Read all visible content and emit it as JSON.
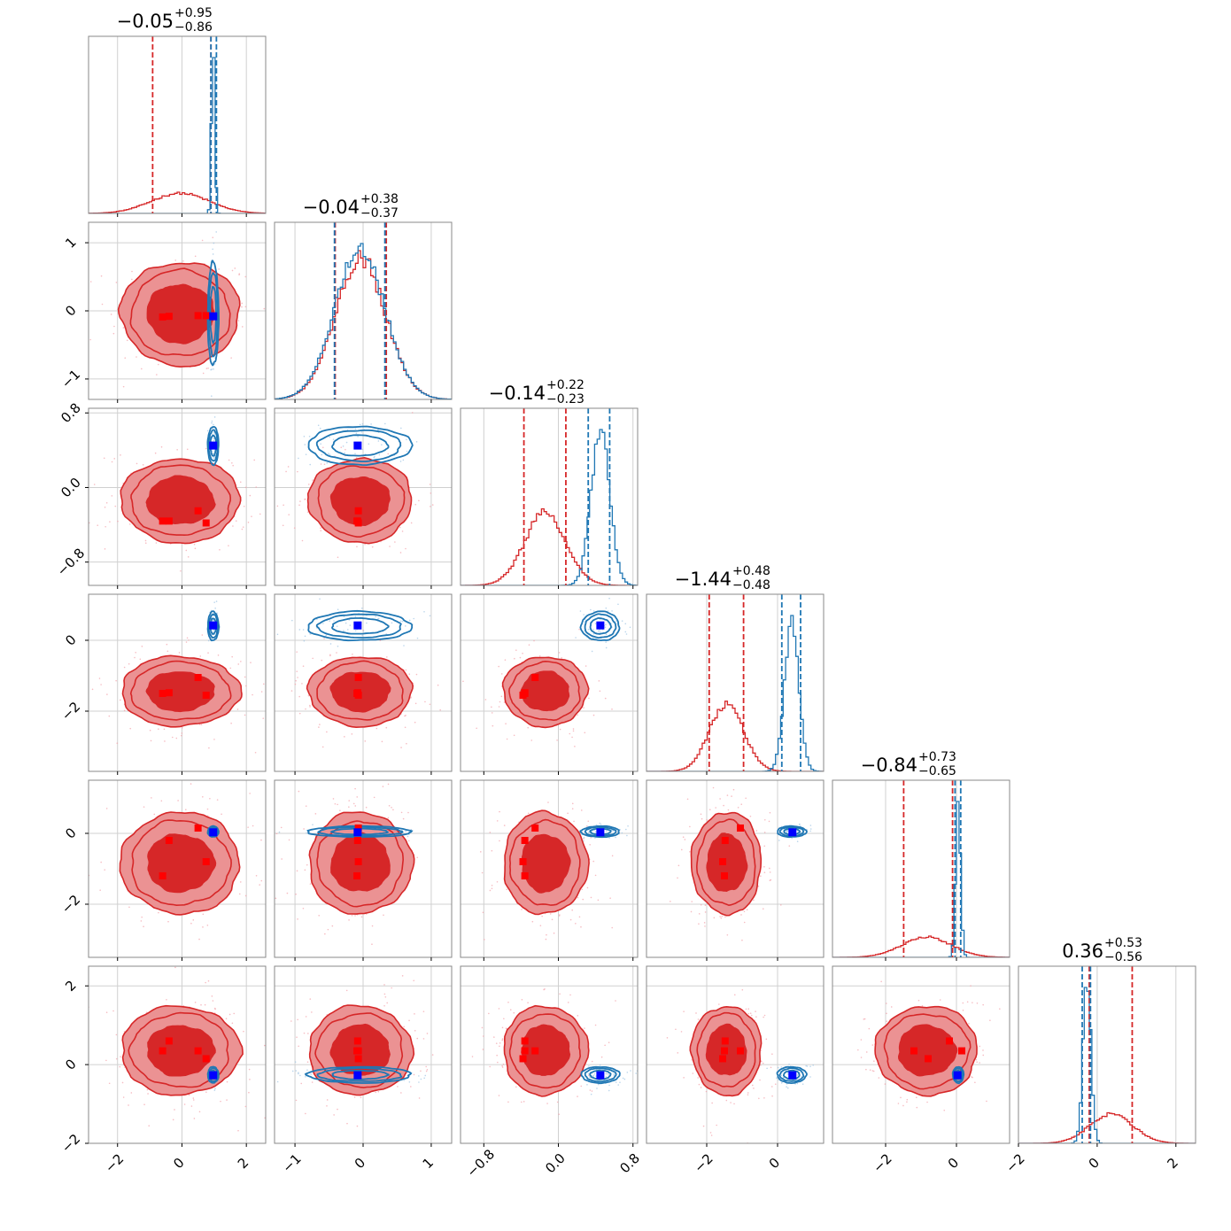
{
  "chart_data": {
    "type": "corner",
    "grid": true,
    "colors": {
      "red": "#d62728",
      "blue": "#1f77b4",
      "red_fill_light": "#eb9293",
      "red_fill_dark": "#d62728",
      "red_marker": "#ff0000",
      "blue_marker": "#0000ff",
      "frame": "#888888",
      "grid": "#d0d0d0"
    },
    "parameters": [
      {
        "range": [
          -2.9,
          2.6
        ],
        "ticks": [
          {
            "v": -2,
            "label": "−2"
          },
          {
            "v": 0,
            "label": "0"
          },
          {
            "v": 2,
            "label": "2"
          }
        ],
        "title": {
          "median": "−0.05",
          "plus": "+0.95",
          "minus": "−0.86"
        },
        "red": {
          "mean": -0.05,
          "sd": 0.9,
          "q": [
            -0.91,
            0.9
          ]
        },
        "blue": {
          "mean": 0.97,
          "sd": 0.05,
          "q": [
            0.9,
            1.07
          ]
        }
      },
      {
        "range": [
          -1.3,
          1.3
        ],
        "ticks": [
          {
            "v": -1,
            "label": "−1"
          },
          {
            "v": 0,
            "label": "0"
          },
          {
            "v": 1,
            "label": "1"
          }
        ],
        "title": {
          "median": "−0.04",
          "plus": "+0.38",
          "minus": "−0.37"
        },
        "red": {
          "mean": -0.04,
          "sd": 0.37,
          "q": [
            -0.41,
            0.34
          ]
        },
        "blue": {
          "mean": -0.05,
          "sd": 0.37,
          "q": [
            -0.42,
            0.32
          ]
        }
      },
      {
        "range": [
          -1.05,
          0.85
        ],
        "ticks": [
          {
            "v": -0.8,
            "label": "−0.8"
          },
          {
            "v": 0.0,
            "label": "0.0"
          },
          {
            "v": 0.8,
            "label": "0.8"
          }
        ],
        "title": {
          "median": "−0.14",
          "plus": "+0.22",
          "minus": "−0.23"
        },
        "red": {
          "mean": -0.14,
          "sd": 0.22,
          "q": [
            -0.37,
            0.08
          ]
        },
        "blue": {
          "mean": 0.45,
          "sd": 0.1,
          "q": [
            0.32,
            0.55
          ]
        }
      },
      {
        "range": [
          -3.7,
          1.3
        ],
        "ticks": [
          {
            "v": -2,
            "label": "−2"
          },
          {
            "v": 0,
            "label": "0"
          }
        ],
        "title": {
          "median": "−1.44",
          "plus": "+0.48",
          "minus": "−0.48"
        },
        "red": {
          "mean": -1.44,
          "sd": 0.48,
          "q": [
            -1.93,
            -0.96
          ]
        },
        "blue": {
          "mean": 0.4,
          "sd": 0.2,
          "q": [
            0.12,
            0.65
          ]
        }
      },
      {
        "range": [
          -3.5,
          1.5
        ],
        "ticks": [
          {
            "v": -2,
            "label": "−2"
          },
          {
            "v": 0,
            "label": "0"
          }
        ],
        "title": {
          "median": "−0.84",
          "plus": "+0.73",
          "minus": "−0.65"
        },
        "red": {
          "mean": -0.84,
          "sd": 0.7,
          "q": [
            -1.49,
            -0.11
          ]
        },
        "blue": {
          "mean": 0.05,
          "sd": 0.07,
          "q": [
            -0.04,
            0.12
          ]
        }
      },
      {
        "range": [
          -2.0,
          2.5
        ],
        "ticks": [
          {
            "v": -2,
            "label": "−2"
          },
          {
            "v": 0,
            "label": "0"
          },
          {
            "v": 2,
            "label": "2"
          }
        ],
        "title": {
          "median": "0.36",
          "plus": "+0.53",
          "minus": "−0.56"
        },
        "red": {
          "mean": 0.36,
          "sd": 0.55,
          "q": [
            -0.2,
            0.89
          ]
        },
        "blue": {
          "mean": -0.26,
          "sd": 0.1,
          "q": [
            -0.38,
            -0.17
          ]
        }
      }
    ],
    "marks_red": [
      [
        -0.6,
        -0.09,
        -0.36,
        -1.5,
        -1.2,
        0.35
      ],
      [
        -0.4,
        -0.08,
        -0.36,
        -1.48,
        -0.2,
        0.6
      ],
      [
        0.5,
        -0.07,
        -0.25,
        -1.05,
        0.15,
        0.35
      ],
      [
        0.75,
        -0.07,
        -0.38,
        -1.55,
        -0.8,
        0.15
      ]
    ],
    "marks_blue": [
      [
        0.97,
        -0.08,
        0.45,
        0.42,
        0.03,
        -0.27
      ]
    ]
  }
}
